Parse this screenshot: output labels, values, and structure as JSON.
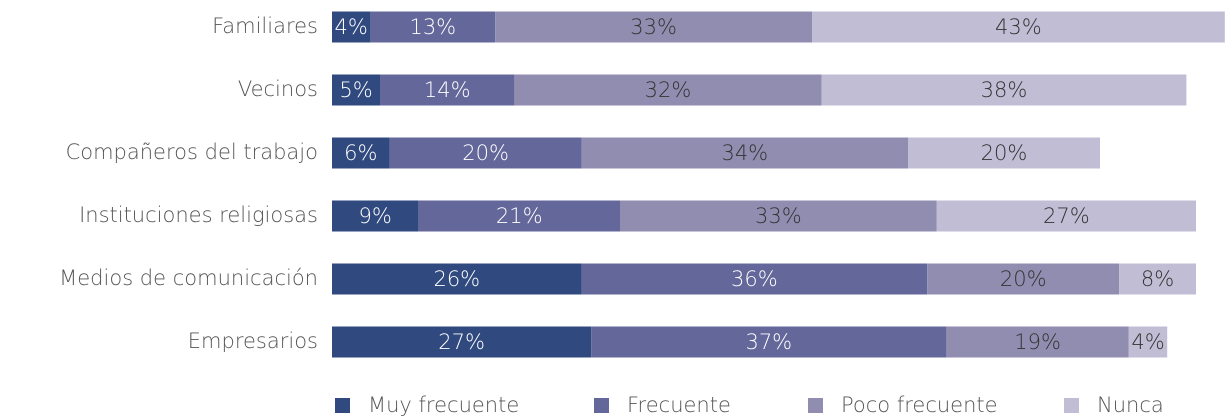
{
  "chart_data": {
    "type": "stacked_bar_horizontal",
    "categories": [
      "Familiares",
      "Vecinos",
      "Compañeros del trabajo",
      "Instituciones religiosas",
      "Medios de comunicación",
      "Empresarios"
    ],
    "series": [
      {
        "name": "Muy frecuente",
        "color": "#30497f",
        "values": [
          4,
          5,
          6,
          9,
          26,
          27
        ],
        "value_labels": [
          "4%",
          "5%",
          "6%",
          "9%",
          "26%",
          "27%"
        ]
      },
      {
        "name": "Frecuente",
        "color": "#64679a",
        "values": [
          13,
          14,
          20,
          21,
          36,
          37
        ],
        "value_labels": [
          "13%",
          "14%",
          "20%",
          "21%",
          "36%",
          "37%"
        ]
      },
      {
        "name": "Poco frecuente",
        "color": "#918db1",
        "values": [
          33,
          32,
          34,
          33,
          20,
          19
        ],
        "value_labels": [
          "33%",
          "32%",
          "34%",
          "33%",
          "20%",
          "19%"
        ]
      },
      {
        "name": "Nunca",
        "color": "#c0bdd5",
        "values": [
          43,
          38,
          20,
          27,
          8,
          4
        ],
        "value_labels": [
          "43%",
          "38%",
          "20%",
          "27%",
          "8%",
          "4%"
        ]
      }
    ],
    "legend": "bottom"
  }
}
